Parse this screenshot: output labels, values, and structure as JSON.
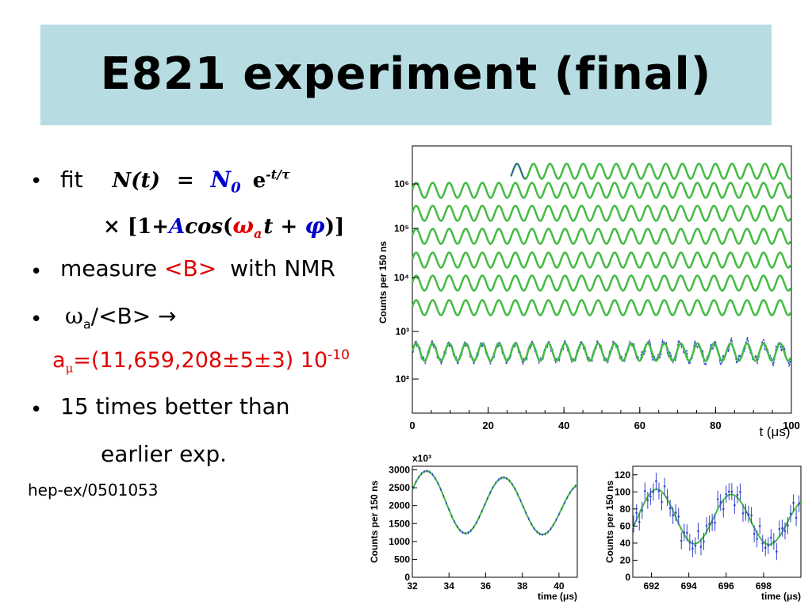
{
  "slide": {
    "title": "E821 experiment (final)",
    "bullet_char": "•",
    "fit_word": "fit",
    "fit_Nt": "N(t)",
    "fit_eq": "=",
    "fit_N0": "N",
    "fit_N0_sub": "0",
    "fit_e": "e",
    "fit_exp": "-t/τ",
    "fit2_times": "×",
    "fit2_open": "[1+",
    "fit2_A": "A",
    "fit2_cos": "cos",
    "fit2_paren": "(",
    "fit2_omega": "ω",
    "fit2_omega_sub": "a",
    "fit2_t": "t",
    "fit2_plus": "+",
    "fit2_phi": "φ",
    "fit2_close": ")]",
    "measure_text": "measure",
    "measure_B": "<B>",
    "measure_with": "with NMR",
    "omega_sym": "ω",
    "omega_sub": "a",
    "omega_ratio": "/<B> →",
    "amu_a": "a",
    "amu_sub": "μ",
    "amu_value": "=(11,659,208±5±3) 10",
    "amu_exp": "-10",
    "better_text": "15 times better than",
    "earlier_text": "earlier exp.",
    "reference": "hep-ex/0501053"
  },
  "chart_data": [
    {
      "type": "line",
      "title": "",
      "ylabel": "Counts per 150 ns",
      "xlabel": "t (μs)",
      "x_ticks": [
        "0",
        "20",
        "40",
        "60",
        "80",
        "100"
      ],
      "xlim": [
        0,
        100
      ],
      "y_scale": "log",
      "y_ticks": [
        "10²",
        "10³",
        "10⁴",
        "10⁵",
        "10⁶"
      ],
      "description_series": "Exponentially decaying wiggle, wrapped into 100 μs segments offset vertically; green fit over blue data",
      "series": [
        {
          "color": "#44bb44",
          "role": "fit"
        },
        {
          "color": "#3344cc",
          "role": "data"
        }
      ]
    },
    {
      "type": "line",
      "ylabel": "Counts per 150 ns",
      "xlabel": "time (μs)",
      "y_multiplier": "x10³",
      "xlim": [
        32,
        41
      ],
      "ylim": [
        0,
        3100
      ],
      "x_ticks": [
        "32",
        "34",
        "36",
        "38",
        "40"
      ],
      "y_ticks": [
        "0",
        "500",
        "1000",
        "1500",
        "2000",
        "2500",
        "3000"
      ],
      "peaks": [
        [
          32.8,
          3000
        ],
        [
          37.1,
          2800
        ]
      ],
      "troughs": [
        [
          34.9,
          1250
        ],
        [
          39.2,
          1150
        ]
      ]
    },
    {
      "type": "line",
      "ylabel": "Counts per 150 ns",
      "xlabel": "time (μs)",
      "xlim": [
        691,
        700
      ],
      "ylim": [
        0,
        130
      ],
      "x_ticks": [
        "692",
        "694",
        "696",
        "698"
      ],
      "y_ticks": [
        "0",
        "20",
        "40",
        "60",
        "80",
        "100",
        "120"
      ],
      "peaks": [
        [
          692.3,
          105
        ],
        [
          696.6,
          98
        ]
      ],
      "troughs": [
        [
          694.3,
          40
        ],
        [
          698.4,
          38
        ]
      ]
    }
  ]
}
